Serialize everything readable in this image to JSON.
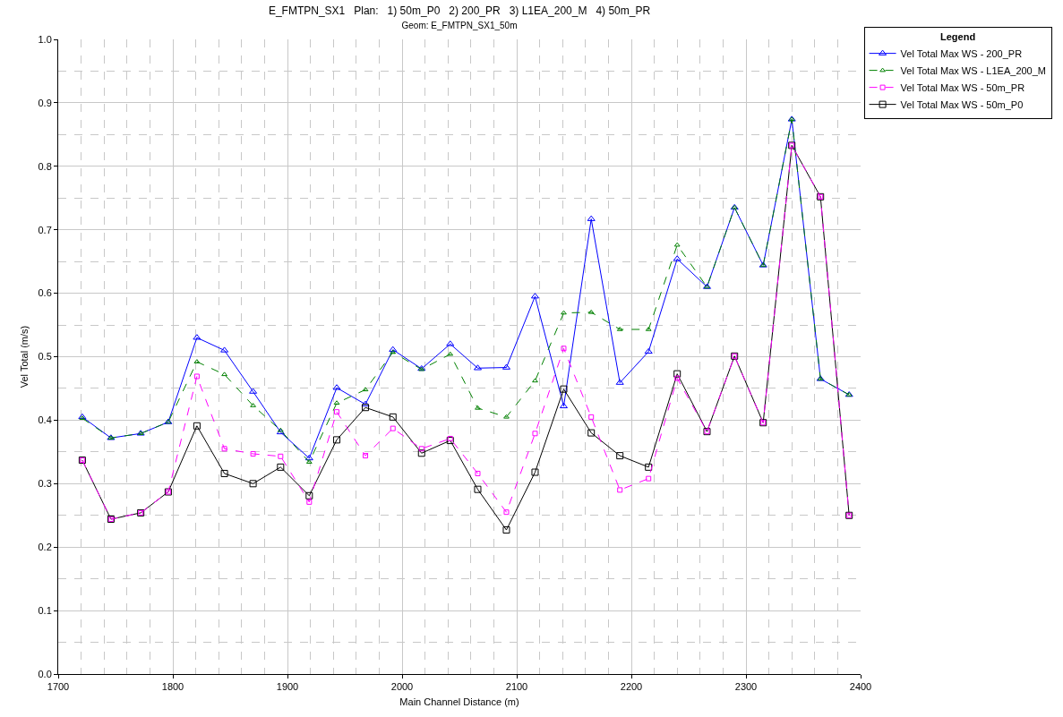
{
  "chart_data": {
    "type": "line",
    "title": "E_FMTPN_SX1   Plan:   1) 50m_P0   2) 200_PR   3) L1EA_200_M   4) 50m_PR",
    "subtitle": "Geom: E_FMTPN_SX1_50m",
    "xlabel": "Main Channel Distance (m)",
    "ylabel": "Vel Total (m/s)",
    "legend_title": "Legend",
    "legend": "top right",
    "grid": true,
    "x": [
      1721,
      1746,
      1772,
      1796,
      1821,
      1845,
      1870,
      1894,
      1919,
      1943,
      1968,
      1992,
      2017,
      2042,
      2066,
      2091,
      2116,
      2141,
      2165,
      2190,
      2215,
      2240,
      2266,
      2290,
      2315,
      2340,
      2365,
      2390
    ],
    "series": [
      {
        "name": "Vel Total Max WS - 200_PR",
        "color": "#0000ff",
        "marker": "triangle",
        "line_style": "solid",
        "values": [
          0.405,
          0.372,
          0.379,
          0.397,
          0.53,
          0.51,
          0.445,
          0.381,
          0.34,
          0.451,
          0.425,
          0.511,
          0.481,
          0.52,
          0.482,
          0.483,
          0.595,
          0.422,
          0.717,
          0.459,
          0.508,
          0.654,
          0.61,
          0.735,
          0.644,
          0.874,
          0.465,
          0.44
        ]
      },
      {
        "name": "Vel Total Max WS - L1EA_200_M",
        "color": "#008000",
        "marker": "triangle",
        "line_style": "dashed",
        "values": [
          0.403,
          0.372,
          0.379,
          0.397,
          0.492,
          0.472,
          0.423,
          0.384,
          0.334,
          0.427,
          0.448,
          0.507,
          0.48,
          0.504,
          0.419,
          0.405,
          0.462,
          0.569,
          0.57,
          0.543,
          0.543,
          0.676,
          0.61,
          0.735,
          0.644,
          0.874,
          0.465,
          0.44
        ]
      },
      {
        "name": "Vel Total Max WS - 50m_PR",
        "color": "#ff00ff",
        "marker": "square",
        "line_style": "dashed",
        "values": [
          0.337,
          0.244,
          0.254,
          0.287,
          0.469,
          0.355,
          0.347,
          0.343,
          0.271,
          0.413,
          0.344,
          0.387,
          0.355,
          0.371,
          0.316,
          0.255,
          0.379,
          0.513,
          0.405,
          0.29,
          0.308,
          0.466,
          0.382,
          0.501,
          0.396,
          0.833,
          0.752,
          0.25
        ]
      },
      {
        "name": "Vel Total Max WS - 50m_P0",
        "color": "#000000",
        "marker": "square",
        "line_style": "solid",
        "values": [
          0.337,
          0.244,
          0.254,
          0.287,
          0.391,
          0.316,
          0.3,
          0.326,
          0.281,
          0.369,
          0.42,
          0.405,
          0.348,
          0.368,
          0.291,
          0.227,
          0.318,
          0.449,
          0.38,
          0.344,
          0.326,
          0.473,
          0.382,
          0.501,
          0.396,
          0.833,
          0.752,
          0.25
        ]
      }
    ],
    "xlim": [
      1700,
      2400
    ],
    "xticks": [
      1700,
      {
        "value": 1720,
        "label": null
      },
      {
        "value": 1740,
        "label": null
      },
      {
        "value": 1760,
        "label": null
      },
      {
        "value": 1780,
        "label": null
      },
      1800,
      {
        "value": 1820,
        "label": null
      },
      {
        "value": 1840,
        "label": null
      },
      {
        "value": 1860,
        "label": null
      },
      {
        "value": 1880,
        "label": null
      },
      1900,
      {
        "value": 1920,
        "label": null
      },
      {
        "value": 1940,
        "label": null
      },
      {
        "value": 1960,
        "label": null
      },
      {
        "value": 1980,
        "label": null
      },
      2000,
      {
        "value": 2020,
        "label": null
      },
      {
        "value": 2040,
        "label": null
      },
      {
        "value": 2060,
        "label": null
      },
      {
        "value": 2080,
        "label": null
      },
      2100,
      {
        "value": 2120,
        "label": null
      },
      {
        "value": 2140,
        "label": null
      },
      {
        "value": 2160,
        "label": null
      },
      {
        "value": 2180,
        "label": null
      },
      2200,
      {
        "value": 2220,
        "label": null
      },
      {
        "value": 2240,
        "label": null
      },
      {
        "value": 2260,
        "label": null
      },
      {
        "value": 2280,
        "label": null
      },
      2300,
      {
        "value": 2320,
        "label": null
      },
      {
        "value": 2340,
        "label": null
      },
      {
        "value": 2360,
        "label": null
      },
      {
        "value": 2380,
        "label": null
      },
      2400
    ],
    "ylim": [
      0,
      1
    ],
    "yticks": [
      {
        "value": 0,
        "label": "0.0"
      },
      {
        "value": 0.05,
        "label": null
      },
      0.1,
      {
        "value": 0.15,
        "label": null
      },
      0.2,
      {
        "value": 0.25,
        "label": null
      },
      0.3,
      {
        "value": 0.35,
        "label": null
      },
      0.4,
      {
        "value": 0.45,
        "label": null
      },
      0.5,
      {
        "value": 0.55,
        "label": null
      },
      0.6,
      {
        "value": 0.65,
        "label": null
      },
      0.7,
      {
        "value": 0.75,
        "label": null
      },
      0.8,
      {
        "value": 0.85,
        "label": null
      },
      0.9,
      {
        "value": 0.95,
        "label": null
      },
      {
        "value": 1,
        "label": "1.0"
      }
    ]
  }
}
